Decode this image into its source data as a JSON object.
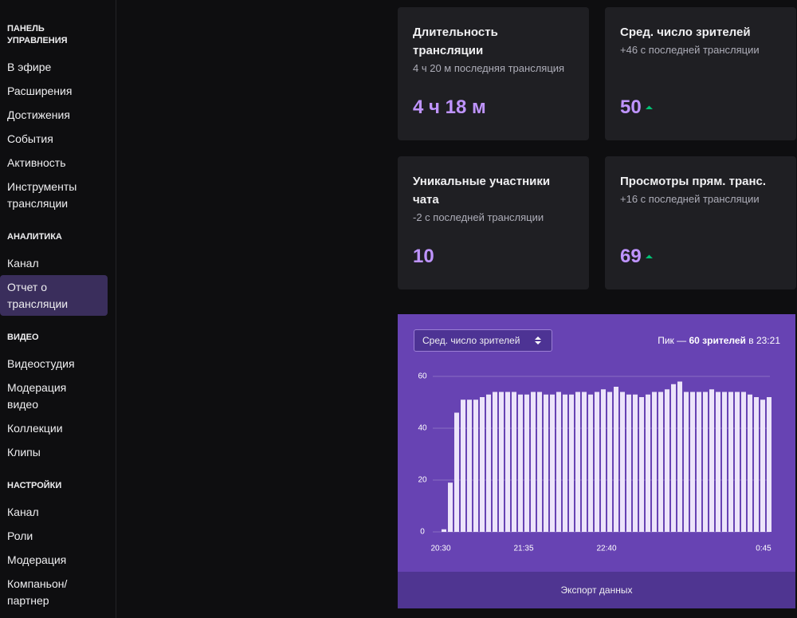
{
  "sidebar": {
    "sections": [
      {
        "title": "ПАНЕЛЬ УПРАВЛЕНИЯ",
        "items": [
          "В эфире",
          "Расширения",
          "Достижения",
          "События",
          "Активность",
          "Инструменты трансляции"
        ]
      },
      {
        "title": "АНАЛИТИКА",
        "items": [
          "Канал",
          "Отчет о трансляции"
        ],
        "active_item": 1
      },
      {
        "title": "ВИДЕО",
        "items": [
          "Видеостудия",
          "Модерация видео",
          "Коллекции",
          "Клипы"
        ]
      },
      {
        "title": "НАСТРОЙКИ",
        "items": [
          "Канал",
          "Роли",
          "Модерация",
          "Компаньон/ партнер"
        ]
      }
    ]
  },
  "stats": [
    {
      "title": "Длительность трансляции",
      "subtitle": "4 ч 20 м последняя трансляция",
      "value": "4 ч 18 м"
    },
    {
      "title": "Сред. число зрителей",
      "subtitle": "+46 с последней трансляции",
      "value": "50",
      "trend": "up"
    },
    {
      "title": "Уникальные участники чата",
      "subtitle": "-2 с последней трансляции",
      "value": "10"
    },
    {
      "title": "Просмотры прям. транс.",
      "subtitle": "+16 с последней трансляции",
      "value": "69",
      "trend": "up"
    }
  ],
  "chart_data": {
    "type": "bar",
    "selector": "Сред. число зрителей",
    "peak_prefix": "Пик —",
    "peak_value": "60 зрителей",
    "peak_suffix": "в 23:21",
    "categories": [
      "20:30",
      null,
      null,
      null,
      null,
      null,
      null,
      null,
      null,
      null,
      null,
      null,
      null,
      "21:35",
      null,
      null,
      null,
      null,
      null,
      null,
      null,
      null,
      null,
      null,
      null,
      null,
      "22:40",
      null,
      null,
      null,
      null,
      null,
      null,
      null,
      null,
      null,
      null,
      null,
      null,
      null,
      null,
      null,
      null,
      null,
      null,
      null,
      null,
      null,
      null,
      null,
      null,
      "0:45"
    ],
    "values": [
      1,
      19,
      46,
      51,
      51,
      51,
      52,
      53,
      54,
      54,
      54,
      54,
      53,
      53,
      54,
      54,
      53,
      53,
      54,
      53,
      53,
      54,
      54,
      53,
      54,
      55,
      54,
      56,
      54,
      53,
      53,
      52,
      53,
      54,
      54,
      55,
      57,
      58,
      54,
      54,
      54,
      54,
      55,
      54,
      54,
      54,
      54,
      54,
      53,
      52,
      51,
      52
    ],
    "color": "#ece4fa",
    "ylim": [
      0,
      60
    ],
    "yticks": [
      0,
      20,
      40,
      60
    ],
    "grid": true
  },
  "export_button": "Экспорт данных"
}
